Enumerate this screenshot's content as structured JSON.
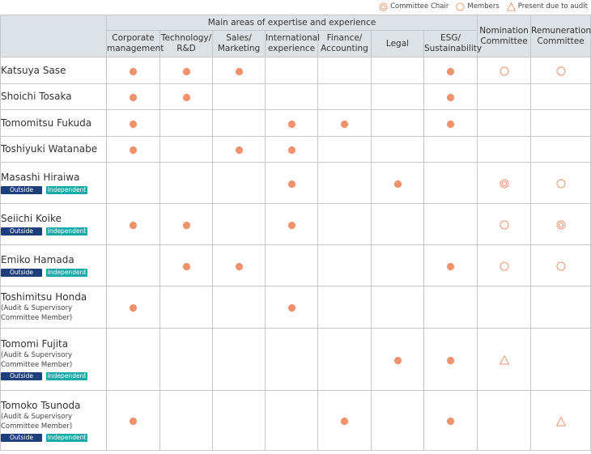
{
  "colors": {
    "dot": "#f0926b",
    "symbol": "#f0926b",
    "outside": "#1f3e7c",
    "independent": "#19a9a8",
    "header_bg": "#dde2e6",
    "grid": "#c4c8cc"
  },
  "legend": [
    {
      "icon": "double-circle-icon",
      "label": "Committee Chair"
    },
    {
      "icon": "circle-icon",
      "label": "Members"
    },
    {
      "icon": "triangle-icon",
      "label": "Present due to audit"
    }
  ],
  "header": {
    "group_label": "Main areas of expertise and experience",
    "areas": [
      [
        "Corporate",
        "management"
      ],
      [
        "Technology/",
        "R&D"
      ],
      [
        "Sales/",
        "Marketing"
      ],
      [
        "International",
        "experience"
      ],
      [
        "Finance/",
        "Accounting"
      ],
      [
        "Legal"
      ],
      [
        "ESG/",
        "Sustainability"
      ]
    ],
    "committees": [
      [
        "Nomination",
        "Committee"
      ],
      [
        "Remuneration",
        "Committee"
      ]
    ]
  },
  "badges": {
    "outside": "Outside",
    "independent": "Independent"
  },
  "rows": [
    {
      "name": "Katsuya Sase",
      "role": [],
      "outside": false,
      "independent": false,
      "areas": [
        1,
        1,
        1,
        0,
        0,
        0,
        1
      ],
      "nomination": "member",
      "remuneration": "member"
    },
    {
      "name": "Shoichi Tosaka",
      "role": [],
      "outside": false,
      "independent": false,
      "areas": [
        1,
        1,
        0,
        0,
        0,
        0,
        1
      ],
      "nomination": "",
      "remuneration": ""
    },
    {
      "name": "Tomomitsu Fukuda",
      "role": [],
      "outside": false,
      "independent": false,
      "areas": [
        1,
        0,
        0,
        1,
        1,
        0,
        1
      ],
      "nomination": "",
      "remuneration": ""
    },
    {
      "name": "Toshiyuki Watanabe",
      "role": [],
      "outside": false,
      "independent": false,
      "areas": [
        1,
        0,
        1,
        1,
        0,
        0,
        0
      ],
      "nomination": "",
      "remuneration": ""
    },
    {
      "name": "Masashi Hiraiwa",
      "role": [],
      "outside": true,
      "independent": true,
      "areas": [
        0,
        0,
        0,
        1,
        0,
        1,
        0
      ],
      "nomination": "chair",
      "remuneration": "member"
    },
    {
      "name": "Seiichi Koike",
      "role": [],
      "outside": true,
      "independent": true,
      "areas": [
        1,
        1,
        0,
        1,
        0,
        0,
        0
      ],
      "nomination": "member",
      "remuneration": "chair"
    },
    {
      "name": "Emiko Hamada",
      "role": [],
      "outside": true,
      "independent": true,
      "areas": [
        0,
        1,
        1,
        0,
        0,
        0,
        1
      ],
      "nomination": "member",
      "remuneration": "member"
    },
    {
      "name": "Toshimitsu Honda",
      "role": [
        "(Audit & Supervisory",
        "Committee Member)"
      ],
      "outside": false,
      "independent": false,
      "areas": [
        1,
        0,
        0,
        1,
        0,
        0,
        0
      ],
      "nomination": "",
      "remuneration": ""
    },
    {
      "name": "Tomomi Fujita",
      "role": [
        "(Audit & Supervisory",
        "Committee Member)"
      ],
      "outside": true,
      "independent": true,
      "areas": [
        0,
        0,
        0,
        0,
        0,
        1,
        1
      ],
      "nomination": "audit",
      "remuneration": ""
    },
    {
      "name": "Tomoko Tsunoda",
      "role": [
        "(Audit & Supervisory",
        "Committee Member)"
      ],
      "outside": true,
      "independent": true,
      "areas": [
        1,
        0,
        0,
        0,
        1,
        0,
        1
      ],
      "nomination": "",
      "remuneration": "audit"
    }
  ]
}
